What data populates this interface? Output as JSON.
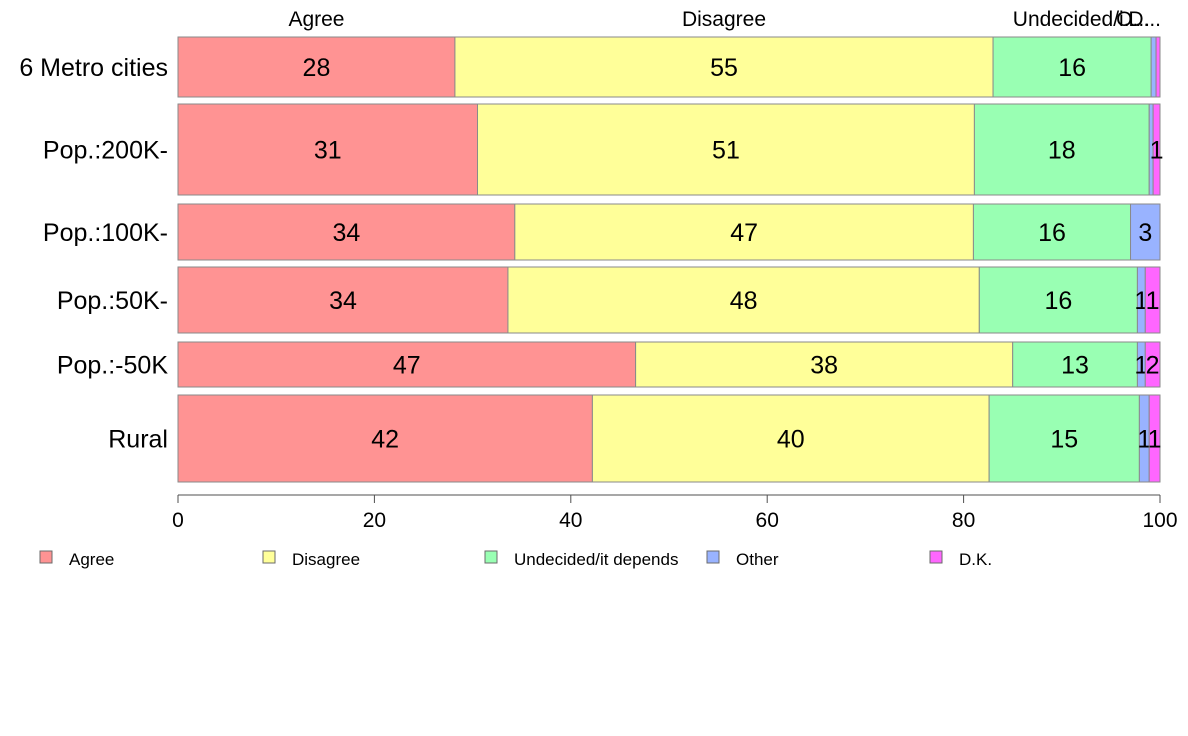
{
  "chart_data": {
    "type": "bar",
    "orientation": "horizontal",
    "stacked": true,
    "title": "",
    "xlabel": "",
    "ylabel": "",
    "xlim": [
      0,
      100
    ],
    "x_ticks": [
      "0",
      "20",
      "40",
      "60",
      "80",
      "100"
    ],
    "categories": [
      "6 Metro cities",
      "Pop.:200K-",
      "Pop.:100K-",
      "Pop.:50K-",
      "Pop.:-50K",
      "Rural"
    ],
    "column_headers": [
      "Agree",
      "Disagree",
      "Undecided/i...",
      "O...",
      "D..."
    ],
    "series": [
      {
        "name": "Agree",
        "color": "#ff9393",
        "values": [
          28.2,
          30.5,
          34.3,
          33.6,
          46.6,
          42.2
        ],
        "labels": [
          "28",
          "31",
          "34",
          "34",
          "47",
          "42"
        ]
      },
      {
        "name": "Disagree",
        "color": "#ffff99",
        "values": [
          54.8,
          50.6,
          46.7,
          48.0,
          38.4,
          40.4
        ],
        "labels": [
          "55",
          "51",
          "47",
          "48",
          "38",
          "40"
        ]
      },
      {
        "name": "Undecided/it depends",
        "color": "#99ffb3",
        "values": [
          16.1,
          17.8,
          16.0,
          16.1,
          12.7,
          15.3
        ],
        "labels": [
          "16",
          "18",
          "16",
          "16",
          "13",
          "15"
        ]
      },
      {
        "name": "Other",
        "color": "#99b3ff",
        "values": [
          0.5,
          0.4,
          3.0,
          0.8,
          0.8,
          1.0
        ],
        "labels": [
          "",
          "",
          "3",
          "1",
          "1",
          "1"
        ]
      },
      {
        "name": "D.K.",
        "color": "#ff66ff",
        "values": [
          0.4,
          0.7,
          0.0,
          1.5,
          1.5,
          1.1
        ],
        "labels": [
          "",
          "1",
          "",
          "1",
          "2",
          "1"
        ]
      }
    ],
    "legend_position": "bottom",
    "grid": false
  }
}
